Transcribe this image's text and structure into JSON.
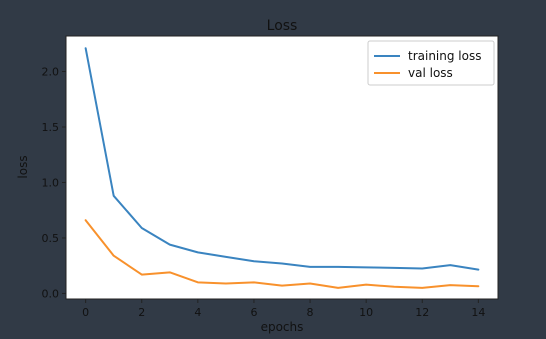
{
  "colors": {
    "background": "#313a46",
    "plot_area": "#ffffff",
    "text": "#111111",
    "axes": "#222222",
    "training": "#3a84c0",
    "validation": "#f8912c"
  },
  "chart_data": {
    "type": "line",
    "title": "Loss",
    "xlabel": "epochs",
    "ylabel": "loss",
    "x": [
      0,
      1,
      2,
      3,
      4,
      5,
      6,
      7,
      8,
      9,
      10,
      11,
      12,
      13,
      14
    ],
    "xlim": [
      -0.7,
      14.7
    ],
    "ylim": [
      -0.05,
      2.32
    ],
    "xticks": [
      0,
      2,
      4,
      6,
      8,
      10,
      12,
      14
    ],
    "yticks": [
      0.0,
      0.5,
      1.0,
      1.5,
      2.0
    ],
    "xtick_labels": [
      "0",
      "2",
      "4",
      "6",
      "8",
      "10",
      "12",
      "14"
    ],
    "ytick_labels": [
      "0.0",
      "0.5",
      "1.0",
      "1.5",
      "2.0"
    ],
    "grid": false,
    "legend_position": "top-right",
    "series": [
      {
        "name": "training loss",
        "color": "#3a84c0",
        "values": [
          2.21,
          0.88,
          0.59,
          0.44,
          0.37,
          0.33,
          0.29,
          0.27,
          0.24,
          0.24,
          0.235,
          0.23,
          0.225,
          0.255,
          0.215
        ]
      },
      {
        "name": "val loss",
        "color": "#f8912c",
        "values": [
          0.66,
          0.34,
          0.17,
          0.19,
          0.1,
          0.09,
          0.1,
          0.07,
          0.09,
          0.05,
          0.08,
          0.06,
          0.05,
          0.075,
          0.065
        ]
      }
    ]
  }
}
